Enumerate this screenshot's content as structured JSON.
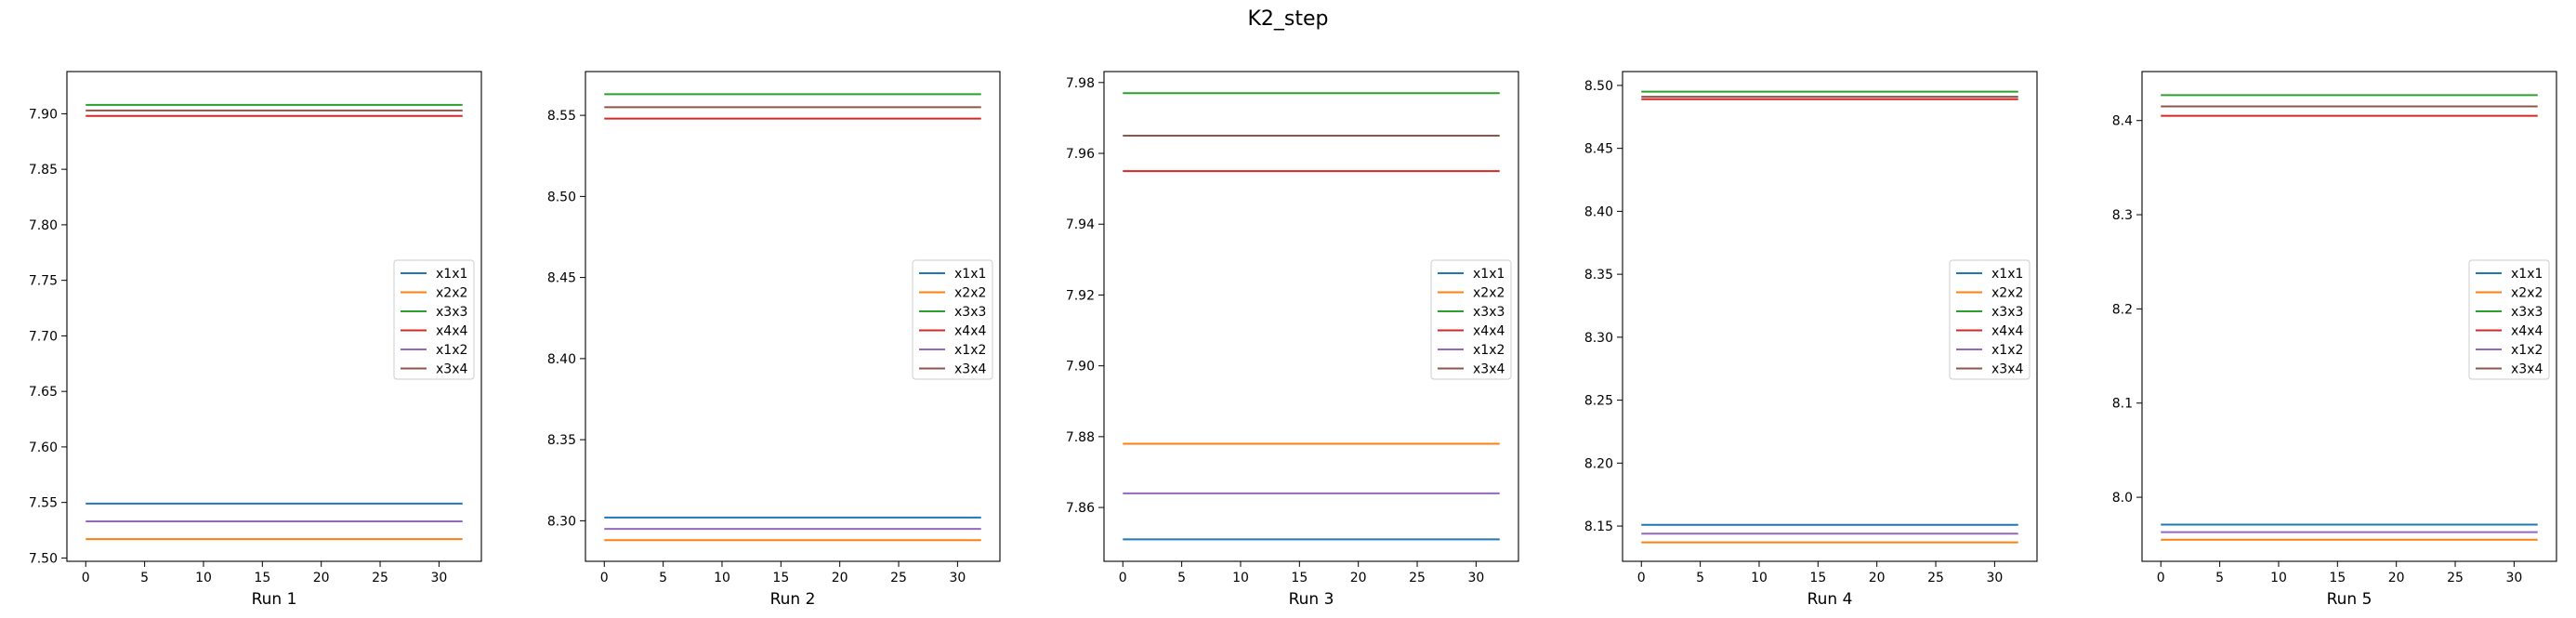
{
  "figure": {
    "title": "K2_step"
  },
  "series_colors": [
    "#1f77b4",
    "#ff7f0e",
    "#2ca02c",
    "#d62728",
    "#9467bd",
    "#8c564b"
  ],
  "chart_data": [
    {
      "type": "line",
      "title": "",
      "xlabel": "Run 1",
      "ylabel": "",
      "xlim": [
        -1.6,
        33.6
      ],
      "ylim": [
        7.497,
        7.938
      ],
      "xticks": [
        0,
        5,
        10,
        15,
        20,
        25,
        30
      ],
      "yticks": [
        7.5,
        7.55,
        7.6,
        7.65,
        7.7,
        7.75,
        7.8,
        7.85,
        7.9
      ],
      "ytick_labels": [
        "7.50",
        "7.55",
        "7.60",
        "7.65",
        "7.70",
        "7.75",
        "7.80",
        "7.85",
        "7.90"
      ],
      "x": [
        0,
        32
      ],
      "grid": false,
      "legend_position": "center-right",
      "series": [
        {
          "name": "x1x1",
          "values": [
            7.549,
            7.549
          ]
        },
        {
          "name": "x2x2",
          "values": [
            7.517,
            7.517
          ]
        },
        {
          "name": "x3x3",
          "values": [
            7.908,
            7.908
          ]
        },
        {
          "name": "x4x4",
          "values": [
            7.898,
            7.898
          ]
        },
        {
          "name": "x1x2",
          "values": [
            7.533,
            7.533
          ]
        },
        {
          "name": "x3x4",
          "values": [
            7.903,
            7.903
          ]
        }
      ]
    },
    {
      "type": "line",
      "title": "",
      "xlabel": "Run 2",
      "ylabel": "",
      "xlim": [
        -1.6,
        33.6
      ],
      "ylim": [
        8.275,
        8.577
      ],
      "xticks": [
        0,
        5,
        10,
        15,
        20,
        25,
        30
      ],
      "yticks": [
        8.3,
        8.35,
        8.4,
        8.45,
        8.5,
        8.55
      ],
      "ytick_labels": [
        "8.30",
        "8.35",
        "8.40",
        "8.45",
        "8.50",
        "8.55"
      ],
      "x": [
        0,
        32
      ],
      "grid": false,
      "legend_position": "center-right",
      "series": [
        {
          "name": "x1x1",
          "values": [
            8.302,
            8.302
          ]
        },
        {
          "name": "x2x2",
          "values": [
            8.288,
            8.288
          ]
        },
        {
          "name": "x3x3",
          "values": [
            8.563,
            8.563
          ]
        },
        {
          "name": "x4x4",
          "values": [
            8.548,
            8.548
          ]
        },
        {
          "name": "x1x2",
          "values": [
            8.295,
            8.295
          ]
        },
        {
          "name": "x3x4",
          "values": [
            8.555,
            8.555
          ]
        }
      ]
    },
    {
      "type": "line",
      "title": "",
      "xlabel": "Run 3",
      "ylabel": "",
      "xlim": [
        -1.6,
        33.6
      ],
      "ylim": [
        7.8448,
        7.9831
      ],
      "xticks": [
        0,
        5,
        10,
        15,
        20,
        25,
        30
      ],
      "yticks": [
        7.86,
        7.88,
        7.9,
        7.92,
        7.94,
        7.96,
        7.98
      ],
      "ytick_labels": [
        "7.86",
        "7.88",
        "7.90",
        "7.92",
        "7.94",
        "7.96",
        "7.98"
      ],
      "x": [
        0,
        32
      ],
      "grid": false,
      "legend_position": "center-right",
      "series": [
        {
          "name": "x1x1",
          "values": [
            7.851,
            7.851
          ]
        },
        {
          "name": "x2x2",
          "values": [
            7.878,
            7.878
          ]
        },
        {
          "name": "x3x3",
          "values": [
            7.977,
            7.977
          ]
        },
        {
          "name": "x4x4",
          "values": [
            7.955,
            7.955
          ]
        },
        {
          "name": "x1x2",
          "values": [
            7.864,
            7.864
          ]
        },
        {
          "name": "x3x4",
          "values": [
            7.965,
            7.965
          ]
        }
      ]
    },
    {
      "type": "line",
      "title": "",
      "xlabel": "Run 4",
      "ylabel": "",
      "xlim": [
        -1.6,
        33.6
      ],
      "ylim": [
        8.122,
        8.511
      ],
      "xticks": [
        0,
        5,
        10,
        15,
        20,
        25,
        30
      ],
      "yticks": [
        8.15,
        8.2,
        8.25,
        8.3,
        8.35,
        8.4,
        8.45,
        8.5
      ],
      "ytick_labels": [
        "8.15",
        "8.20",
        "8.25",
        "8.30",
        "8.35",
        "8.40",
        "8.45",
        "8.50"
      ],
      "x": [
        0,
        32
      ],
      "grid": false,
      "legend_position": "center-right",
      "series": [
        {
          "name": "x1x1",
          "values": [
            8.151,
            8.151
          ]
        },
        {
          "name": "x2x2",
          "values": [
            8.137,
            8.137
          ]
        },
        {
          "name": "x3x3",
          "values": [
            8.495,
            8.495
          ]
        },
        {
          "name": "x4x4",
          "values": [
            8.489,
            8.489
          ]
        },
        {
          "name": "x1x2",
          "values": [
            8.144,
            8.144
          ]
        },
        {
          "name": "x3x4",
          "values": [
            8.491,
            8.491
          ]
        }
      ]
    },
    {
      "type": "line",
      "title": "",
      "xlabel": "Run 5",
      "ylabel": "",
      "xlim": [
        -1.6,
        33.6
      ],
      "ylim": [
        7.932,
        8.452
      ],
      "xticks": [
        0,
        5,
        10,
        15,
        20,
        25,
        30
      ],
      "yticks": [
        8.0,
        8.1,
        8.2,
        8.3,
        8.4
      ],
      "ytick_labels": [
        "8.0",
        "8.1",
        "8.2",
        "8.3",
        "8.4"
      ],
      "x": [
        0,
        32
      ],
      "grid": false,
      "legend_position": "center-right",
      "series": [
        {
          "name": "x1x1",
          "values": [
            7.971,
            7.971
          ]
        },
        {
          "name": "x2x2",
          "values": [
            7.955,
            7.955
          ]
        },
        {
          "name": "x3x3",
          "values": [
            8.427,
            8.427
          ]
        },
        {
          "name": "x4x4",
          "values": [
            8.405,
            8.405
          ]
        },
        {
          "name": "x1x2",
          "values": [
            7.963,
            7.963
          ]
        },
        {
          "name": "x3x4",
          "values": [
            8.415,
            8.415
          ]
        }
      ]
    }
  ]
}
